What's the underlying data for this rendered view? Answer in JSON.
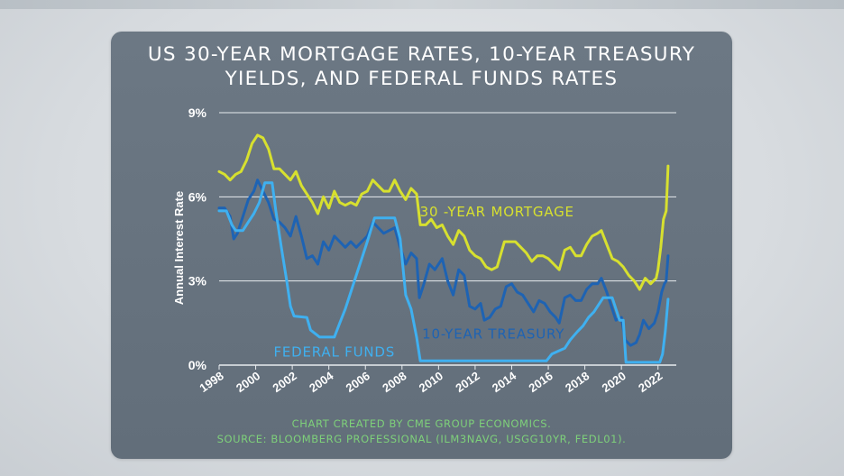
{
  "chart_data": {
    "type": "line",
    "title": "US 30-YEAR MORTGAGE RATES, 10-YEAR TREASURY YIELDS, AND FEDERAL FUNDS RATES",
    "title_lines": [
      "US 30-YEAR MORTGAGE RATES, 10-YEAR TREASURY",
      "YIELDS, AND FEDERAL FUNDS RATES"
    ],
    "ylabel": "Annual Interest Rate",
    "xlabel": "",
    "ylim": [
      0,
      9
    ],
    "xlim": [
      1998,
      2023
    ],
    "yticks": [
      {
        "value": 0,
        "label": "0%"
      },
      {
        "value": 3,
        "label": "3%"
      },
      {
        "value": 6,
        "label": "6%"
      },
      {
        "value": 9,
        "label": "9%"
      }
    ],
    "xticks": [
      {
        "value": 1998,
        "label": "1998"
      },
      {
        "value": 2000,
        "label": "2000"
      },
      {
        "value": 2002,
        "label": "2002"
      },
      {
        "value": 2004,
        "label": "2004"
      },
      {
        "value": 2006,
        "label": "2006"
      },
      {
        "value": 2008,
        "label": "2008"
      },
      {
        "value": 2010,
        "label": "2010"
      },
      {
        "value": 2012,
        "label": "2012"
      },
      {
        "value": 2014,
        "label": "2014"
      },
      {
        "value": 2016,
        "label": "2016"
      },
      {
        "value": 2018,
        "label": "2018"
      },
      {
        "value": 2020,
        "label": "2020"
      },
      {
        "value": 2022,
        "label": "2022"
      }
    ],
    "grid": true,
    "legend": "inline labels",
    "series": [
      {
        "name": "30 -YEAR MORTGAGE",
        "color": "#d7e02f",
        "label_at": [
          2013.2,
          5.3
        ],
        "points": [
          [
            1998.0,
            6.9
          ],
          [
            1998.3,
            6.8
          ],
          [
            1998.6,
            6.6
          ],
          [
            1998.9,
            6.8
          ],
          [
            1999.2,
            6.9
          ],
          [
            1999.5,
            7.3
          ],
          [
            1999.8,
            7.9
          ],
          [
            2000.1,
            8.2
          ],
          [
            2000.4,
            8.1
          ],
          [
            2000.7,
            7.7
          ],
          [
            2001.0,
            7.0
          ],
          [
            2001.3,
            7.0
          ],
          [
            2001.6,
            6.8
          ],
          [
            2001.9,
            6.6
          ],
          [
            2002.2,
            6.9
          ],
          [
            2002.5,
            6.4
          ],
          [
            2002.8,
            6.1
          ],
          [
            2003.1,
            5.8
          ],
          [
            2003.4,
            5.4
          ],
          [
            2003.7,
            6.0
          ],
          [
            2004.0,
            5.6
          ],
          [
            2004.3,
            6.2
          ],
          [
            2004.6,
            5.8
          ],
          [
            2004.9,
            5.7
          ],
          [
            2005.2,
            5.8
          ],
          [
            2005.5,
            5.7
          ],
          [
            2005.8,
            6.1
          ],
          [
            2006.1,
            6.2
          ],
          [
            2006.4,
            6.6
          ],
          [
            2006.7,
            6.4
          ],
          [
            2007.0,
            6.2
          ],
          [
            2007.3,
            6.2
          ],
          [
            2007.6,
            6.6
          ],
          [
            2007.9,
            6.2
          ],
          [
            2008.2,
            5.9
          ],
          [
            2008.5,
            6.3
          ],
          [
            2008.8,
            6.1
          ],
          [
            2009.0,
            5.0
          ],
          [
            2009.3,
            5.0
          ],
          [
            2009.6,
            5.2
          ],
          [
            2009.9,
            4.9
          ],
          [
            2010.2,
            5.0
          ],
          [
            2010.5,
            4.6
          ],
          [
            2010.8,
            4.3
          ],
          [
            2011.1,
            4.8
          ],
          [
            2011.4,
            4.6
          ],
          [
            2011.7,
            4.1
          ],
          [
            2012.0,
            3.9
          ],
          [
            2012.3,
            3.8
          ],
          [
            2012.6,
            3.5
          ],
          [
            2012.9,
            3.4
          ],
          [
            2013.2,
            3.5
          ],
          [
            2013.6,
            4.4
          ],
          [
            2013.9,
            4.4
          ],
          [
            2014.2,
            4.4
          ],
          [
            2014.5,
            4.2
          ],
          [
            2014.8,
            4.0
          ],
          [
            2015.1,
            3.7
          ],
          [
            2015.4,
            3.9
          ],
          [
            2015.7,
            3.9
          ],
          [
            2016.0,
            3.8
          ],
          [
            2016.3,
            3.6
          ],
          [
            2016.6,
            3.4
          ],
          [
            2016.9,
            4.1
          ],
          [
            2017.2,
            4.2
          ],
          [
            2017.5,
            3.9
          ],
          [
            2017.8,
            3.9
          ],
          [
            2018.1,
            4.3
          ],
          [
            2018.4,
            4.6
          ],
          [
            2018.7,
            4.7
          ],
          [
            2018.9,
            4.8
          ],
          [
            2019.2,
            4.3
          ],
          [
            2019.5,
            3.8
          ],
          [
            2019.8,
            3.7
          ],
          [
            2020.1,
            3.5
          ],
          [
            2020.4,
            3.2
          ],
          [
            2020.7,
            3.0
          ],
          [
            2021.0,
            2.7
          ],
          [
            2021.3,
            3.1
          ],
          [
            2021.6,
            2.9
          ],
          [
            2021.9,
            3.1
          ],
          [
            2022.0,
            3.4
          ],
          [
            2022.15,
            4.2
          ],
          [
            2022.3,
            5.2
          ],
          [
            2022.45,
            5.5
          ],
          [
            2022.55,
            7.1
          ]
        ]
      },
      {
        "name": "10-YEAR TREASURY",
        "color": "#1e63b3",
        "label_at": [
          2013.0,
          0.95
        ],
        "points": [
          [
            1998.0,
            5.6
          ],
          [
            1998.3,
            5.6
          ],
          [
            1998.6,
            5.3
          ],
          [
            1998.8,
            4.5
          ],
          [
            1999.0,
            4.7
          ],
          [
            1999.3,
            5.3
          ],
          [
            1999.6,
            5.9
          ],
          [
            1999.9,
            6.2
          ],
          [
            2000.1,
            6.6
          ],
          [
            2000.4,
            6.2
          ],
          [
            2000.7,
            5.8
          ],
          [
            2001.0,
            5.2
          ],
          [
            2001.3,
            5.1
          ],
          [
            2001.6,
            4.9
          ],
          [
            2001.9,
            4.6
          ],
          [
            2002.2,
            5.3
          ],
          [
            2002.5,
            4.6
          ],
          [
            2002.8,
            3.8
          ],
          [
            2003.1,
            3.9
          ],
          [
            2003.4,
            3.6
          ],
          [
            2003.7,
            4.4
          ],
          [
            2004.0,
            4.1
          ],
          [
            2004.3,
            4.6
          ],
          [
            2004.6,
            4.4
          ],
          [
            2004.9,
            4.2
          ],
          [
            2005.2,
            4.4
          ],
          [
            2005.5,
            4.2
          ],
          [
            2005.8,
            4.4
          ],
          [
            2006.1,
            4.6
          ],
          [
            2006.4,
            5.1
          ],
          [
            2006.7,
            4.9
          ],
          [
            2007.0,
            4.7
          ],
          [
            2007.3,
            4.8
          ],
          [
            2007.6,
            4.9
          ],
          [
            2007.9,
            4.2
          ],
          [
            2008.2,
            3.6
          ],
          [
            2008.5,
            4.0
          ],
          [
            2008.8,
            3.8
          ],
          [
            2008.95,
            2.4
          ],
          [
            2009.2,
            2.9
          ],
          [
            2009.5,
            3.6
          ],
          [
            2009.8,
            3.4
          ],
          [
            2010.2,
            3.8
          ],
          [
            2010.5,
            3.0
          ],
          [
            2010.8,
            2.5
          ],
          [
            2011.1,
            3.4
          ],
          [
            2011.4,
            3.2
          ],
          [
            2011.7,
            2.1
          ],
          [
            2012.0,
            2.0
          ],
          [
            2012.3,
            2.2
          ],
          [
            2012.5,
            1.6
          ],
          [
            2012.8,
            1.7
          ],
          [
            2013.1,
            2.0
          ],
          [
            2013.4,
            2.1
          ],
          [
            2013.7,
            2.8
          ],
          [
            2014.0,
            2.9
          ],
          [
            2014.3,
            2.6
          ],
          [
            2014.6,
            2.5
          ],
          [
            2014.9,
            2.2
          ],
          [
            2015.2,
            1.9
          ],
          [
            2015.5,
            2.3
          ],
          [
            2015.8,
            2.2
          ],
          [
            2016.1,
            1.9
          ],
          [
            2016.4,
            1.7
          ],
          [
            2016.6,
            1.5
          ],
          [
            2016.9,
            2.4
          ],
          [
            2017.2,
            2.5
          ],
          [
            2017.5,
            2.3
          ],
          [
            2017.8,
            2.3
          ],
          [
            2018.1,
            2.7
          ],
          [
            2018.4,
            2.9
          ],
          [
            2018.7,
            2.9
          ],
          [
            2018.9,
            3.1
          ],
          [
            2019.2,
            2.6
          ],
          [
            2019.5,
            2.0
          ],
          [
            2019.7,
            1.6
          ],
          [
            2020.0,
            1.7
          ],
          [
            2020.2,
            0.9
          ],
          [
            2020.5,
            0.7
          ],
          [
            2020.8,
            0.8
          ],
          [
            2021.0,
            1.1
          ],
          [
            2021.2,
            1.6
          ],
          [
            2021.5,
            1.3
          ],
          [
            2021.8,
            1.5
          ],
          [
            2022.0,
            1.9
          ],
          [
            2022.2,
            2.6
          ],
          [
            2022.35,
            2.9
          ],
          [
            2022.45,
            3.0
          ],
          [
            2022.55,
            3.9
          ]
        ]
      },
      {
        "name": "FEDERAL FUNDS",
        "color": "#3fb0f0",
        "label_at": [
          2004.3,
          0.3
        ],
        "points": [
          [
            1998.0,
            5.5
          ],
          [
            1998.4,
            5.5
          ],
          [
            1998.7,
            5.0
          ],
          [
            1998.9,
            4.8
          ],
          [
            1999.3,
            4.8
          ],
          [
            1999.6,
            5.1
          ],
          [
            1999.9,
            5.4
          ],
          [
            2000.2,
            5.8
          ],
          [
            2000.5,
            6.5
          ],
          [
            2000.9,
            6.5
          ],
          [
            2001.1,
            5.5
          ],
          [
            2001.4,
            4.2
          ],
          [
            2001.7,
            3.0
          ],
          [
            2001.9,
            2.1
          ],
          [
            2002.1,
            1.75
          ],
          [
            2002.8,
            1.7
          ],
          [
            2003.0,
            1.25
          ],
          [
            2003.5,
            1.0
          ],
          [
            2004.3,
            1.0
          ],
          [
            2004.6,
            1.5
          ],
          [
            2004.9,
            2.0
          ],
          [
            2005.2,
            2.6
          ],
          [
            2005.5,
            3.2
          ],
          [
            2005.8,
            3.8
          ],
          [
            2006.1,
            4.4
          ],
          [
            2006.5,
            5.25
          ],
          [
            2007.6,
            5.25
          ],
          [
            2007.9,
            4.5
          ],
          [
            2008.2,
            2.5
          ],
          [
            2008.5,
            2.0
          ],
          [
            2008.8,
            1.0
          ],
          [
            2009.0,
            0.15
          ],
          [
            2015.9,
            0.15
          ],
          [
            2016.2,
            0.4
          ],
          [
            2016.9,
            0.6
          ],
          [
            2017.2,
            0.9
          ],
          [
            2017.6,
            1.2
          ],
          [
            2017.9,
            1.4
          ],
          [
            2018.2,
            1.7
          ],
          [
            2018.5,
            1.9
          ],
          [
            2018.8,
            2.2
          ],
          [
            2019.0,
            2.4
          ],
          [
            2019.5,
            2.4
          ],
          [
            2019.7,
            2.0
          ],
          [
            2019.9,
            1.6
          ],
          [
            2020.1,
            1.6
          ],
          [
            2020.25,
            0.1
          ],
          [
            2022.1,
            0.1
          ],
          [
            2022.25,
            0.4
          ],
          [
            2022.4,
            1.2
          ],
          [
            2022.55,
            2.35
          ]
        ]
      }
    ]
  },
  "footer": {
    "line1": "CHART CREATED BY CME GROUP ECONOMICS.",
    "line2": "SOURCE: BLOOMBERG PROFESSIONAL (ILM3NAVG, USGG10YR, FEDL01)."
  },
  "colors": {
    "card_bg": "#67737f",
    "grid": "#e8ecef",
    "text": "#ffffff",
    "footer": "#7ed07a"
  }
}
